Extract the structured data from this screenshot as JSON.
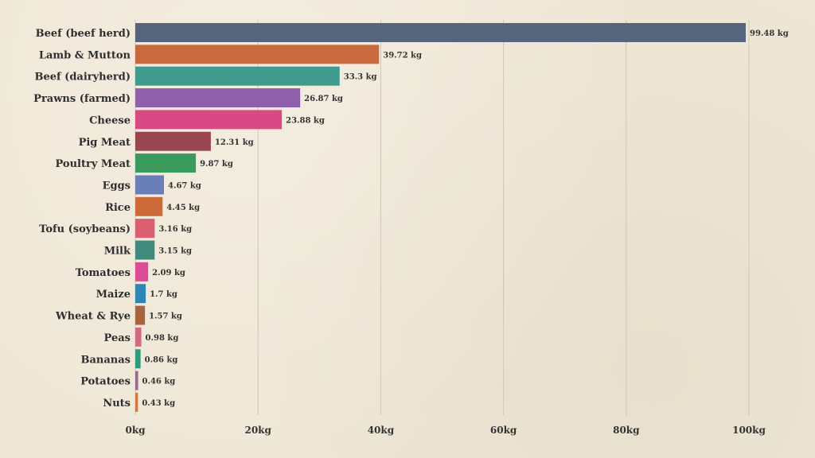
{
  "chart_data": {
    "type": "bar",
    "orientation": "horizontal",
    "categories": [
      "Beef (beef herd)",
      "Lamb & Mutton",
      "Beef (dairyherd)",
      "Prawns (farmed)",
      "Cheese",
      "Pig Meat",
      "Poultry Meat",
      "Eggs",
      "Rice",
      "Tofu (soybeans)",
      "Milk",
      "Tomatoes",
      "Maize",
      "Wheat & Rye",
      "Peas",
      "Bananas",
      "Potatoes",
      "Nuts"
    ],
    "values": [
      99.48,
      39.72,
      33.3,
      26.87,
      23.88,
      12.31,
      9.87,
      4.67,
      4.45,
      3.16,
      3.15,
      2.09,
      1.7,
      1.57,
      0.98,
      0.86,
      0.46,
      0.43
    ],
    "value_labels": [
      "99.48 kg",
      "39.72 kg",
      "33.3 kg",
      "26.87 kg",
      "23.88 kg",
      "12.31 kg",
      "9.87 kg",
      "4.67 kg",
      "4.45 kg",
      "3.16 kg",
      "3.15 kg",
      "2.09 kg",
      "1.7 kg",
      "1.57 kg",
      "0.98 kg",
      "0.86 kg",
      "0.46 kg",
      "0.43 kg"
    ],
    "colors": [
      "#56657c",
      "#c96a3e",
      "#3e9b8e",
      "#8f5fa9",
      "#d94a84",
      "#9a4650",
      "#3a9a5c",
      "#6a7fb8",
      "#cd6a3a",
      "#db5f6e",
      "#3f8a7c",
      "#db4d97",
      "#2f86b2",
      "#a8643e",
      "#cf6a82",
      "#2f9a7e",
      "#9a6a8e",
      "#cf7a3e"
    ],
    "xlim": [
      0,
      100
    ],
    "xticks": [
      0,
      20,
      40,
      60,
      80,
      100
    ],
    "xtick_labels": [
      "0kg",
      "20kg",
      "40kg",
      "60kg",
      "80kg",
      "100kg"
    ],
    "grid": true,
    "title": "",
    "xlabel": "",
    "ylabel": ""
  }
}
